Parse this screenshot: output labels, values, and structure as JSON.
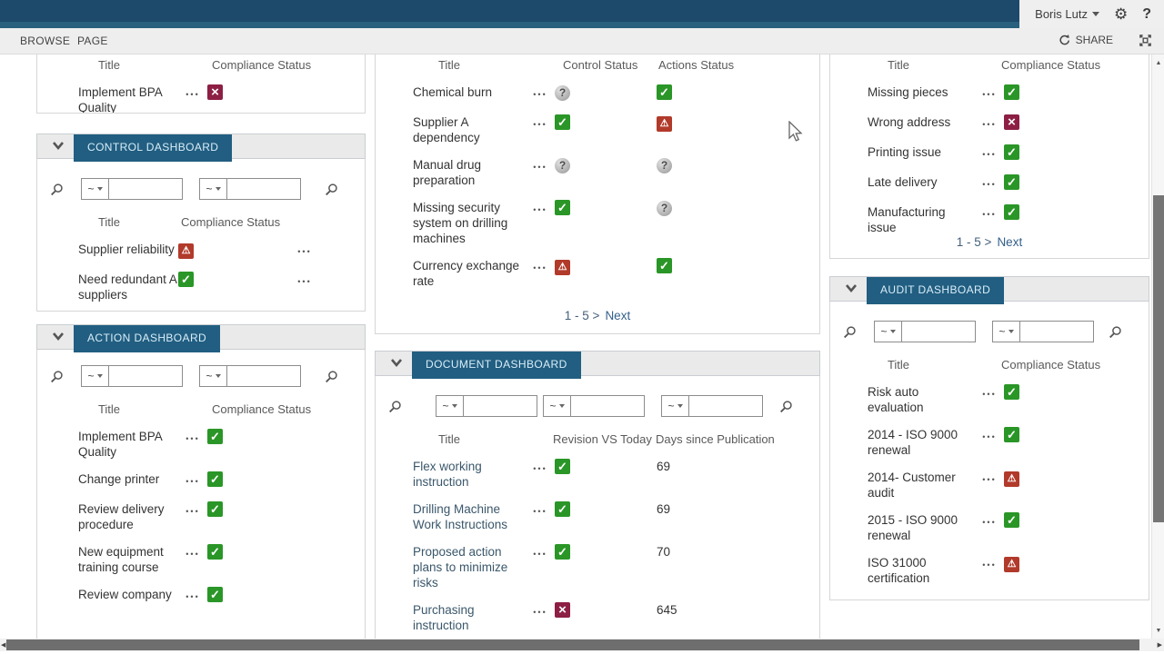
{
  "suite": {
    "user": "Boris Lutz",
    "help": "?"
  },
  "ribbon": {
    "tabs": [
      "BROWSE",
      "PAGE"
    ],
    "share": "SHARE"
  },
  "filters": {
    "operator": "~"
  },
  "colors": {
    "suite_bar": "#1d4a6a",
    "accent_tab": "#215e81",
    "status_ok": "#2a9627",
    "status_error": "#8d1f44",
    "status_warning": "#b13a2a",
    "status_unknown": "#969696"
  },
  "panels": {
    "left_top": {
      "columns": [
        "Title",
        "Compliance Status"
      ],
      "cells": [
        "title",
        "dots",
        "status"
      ],
      "rows": [
        {
          "title": "Implement BPA Quality",
          "status": "x"
        }
      ]
    },
    "control": {
      "title": "CONTROL DASHBOARD",
      "columns": [
        "Title",
        "Compliance Status"
      ],
      "cells": [
        "title",
        "status",
        "dots"
      ],
      "rows": [
        {
          "title": "Supplier reliability",
          "status": "warning"
        },
        {
          "title": "Need redundant A suppliers",
          "status": "check"
        }
      ]
    },
    "action": {
      "title": "ACTION DASHBOARD",
      "columns": [
        "Title",
        "Compliance Status"
      ],
      "cells": [
        "title",
        "dots",
        "status"
      ],
      "rows": [
        {
          "title": "Implement BPA Quality",
          "status": "check"
        },
        {
          "title": "Change printer",
          "status": "check"
        },
        {
          "title": "Review delivery procedure",
          "status": "check"
        },
        {
          "title": "New equipment training course",
          "status": "check"
        },
        {
          "title": "Review company",
          "status": "check"
        }
      ]
    },
    "risk": {
      "columns": [
        "Title",
        "Control Status",
        "Actions Status"
      ],
      "cells": [
        "title",
        "dots",
        "control",
        "actions"
      ],
      "pagination": "1 - 5 >",
      "next": "Next",
      "rows": [
        {
          "title": "Chemical burn",
          "control": "question",
          "actions": "check"
        },
        {
          "title": "Supplier A dependency",
          "control": "check",
          "actions": "warning"
        },
        {
          "title": "Manual drug preparation",
          "control": "question",
          "actions": "question"
        },
        {
          "title": "Missing security system on drilling machines",
          "control": "check",
          "actions": "question"
        },
        {
          "title": "Currency exchange rate",
          "control": "warning",
          "actions": "check"
        }
      ]
    },
    "document": {
      "title": "DOCUMENT DASHBOARD",
      "columns": [
        "Title",
        "Revision VS Today",
        "Days since Publication"
      ],
      "cells": [
        "title",
        "dots",
        "status",
        "days"
      ],
      "link": true,
      "rows": [
        {
          "title": "Flex working instruction",
          "status": "check",
          "days": "69"
        },
        {
          "title": "Drilling Machine Work Instructions",
          "status": "check",
          "days": "69"
        },
        {
          "title": "Proposed action plans to minimize risks",
          "status": "check",
          "days": "70"
        },
        {
          "title": "Purchasing instruction",
          "status": "x",
          "days": "645"
        }
      ]
    },
    "right_top": {
      "columns": [
        "Title",
        "Compliance Status"
      ],
      "cells": [
        "title",
        "dots",
        "status"
      ],
      "pagination": "1 - 5 >",
      "next": "Next",
      "rows": [
        {
          "title": "Missing pieces",
          "status": "check"
        },
        {
          "title": "Wrong address",
          "status": "x"
        },
        {
          "title": "Printing issue",
          "status": "check"
        },
        {
          "title": "Late delivery",
          "status": "check"
        },
        {
          "title": "Manufacturing issue",
          "status": "check"
        }
      ]
    },
    "audit": {
      "title": "AUDIT DASHBOARD",
      "columns": [
        "Title",
        "Compliance Status"
      ],
      "cells": [
        "title",
        "dots",
        "status"
      ],
      "rows": [
        {
          "title": "Risk auto evaluation",
          "status": "check"
        },
        {
          "title": "2014 - ISO 9000 renewal",
          "status": "check"
        },
        {
          "title": "2014- Customer audit",
          "status": "warning"
        },
        {
          "title": "2015 - ISO 9000 renewal",
          "status": "check"
        },
        {
          "title": "ISO 31000 certification",
          "status": "warning"
        }
      ]
    }
  }
}
